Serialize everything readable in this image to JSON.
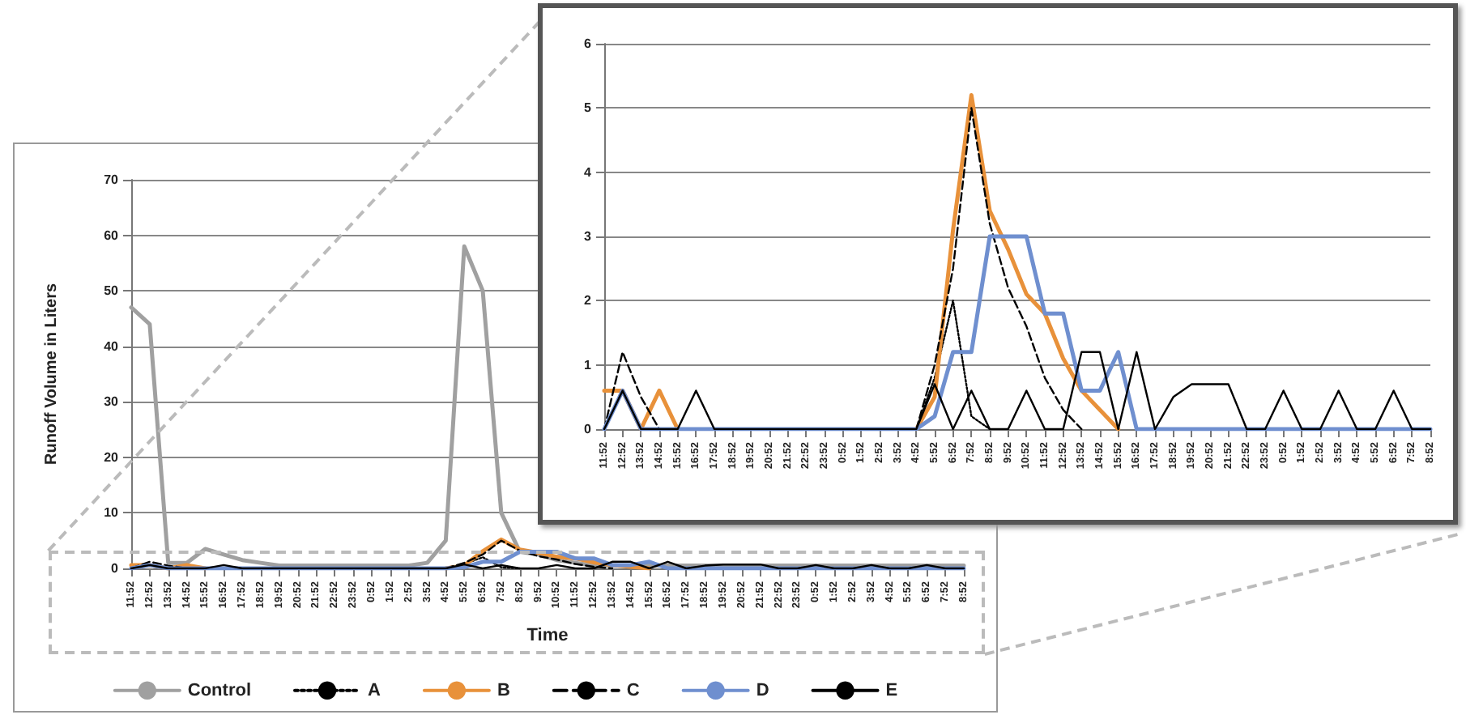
{
  "chart_data": [
    {
      "type": "line",
      "xlabel": "Time",
      "ylabel": "Runoff Volume in Liters",
      "categories": [
        "11:52",
        "12:52",
        "13:52",
        "14:52",
        "15:52",
        "16:52",
        "17:52",
        "18:52",
        "19:52",
        "20:52",
        "21:52",
        "22:52",
        "23:52",
        "0:52",
        "1:52",
        "2:52",
        "3:52",
        "4:52",
        "5:52",
        "6:52",
        "7:52",
        "8:52",
        "9:52",
        "10:52",
        "11:52",
        "12:52",
        "13:52",
        "14:52",
        "15:52",
        "16:52",
        "17:52",
        "18:52",
        "19:52",
        "20:52",
        "21:52",
        "22:52",
        "23:52",
        "0:52",
        "1:52",
        "2:52",
        "3:52",
        "4:52",
        "5:52",
        "6:52",
        "7:52",
        "8:52"
      ],
      "ylim": [
        0,
        70
      ],
      "yticks": [
        0,
        10,
        20,
        30,
        40,
        50,
        60,
        70
      ],
      "grid": "y",
      "legend": "bottom",
      "series": [
        {
          "name": "Control",
          "color": "#a0a0a0",
          "line_style": "solid",
          "values": [
            47,
            44,
            1,
            1,
            3.5,
            2.5,
            1.5,
            1,
            0.5,
            0.5,
            0.5,
            0.5,
            0.5,
            0.5,
            0.5,
            0.5,
            1,
            5,
            58,
            50,
            10,
            3,
            2.5,
            1.5,
            1,
            0.5,
            0.5,
            0.5,
            0.5,
            0.5,
            0.5,
            0.5,
            0.5,
            0.5,
            0.5,
            0.5,
            0.5,
            0.5,
            0.5,
            0.5,
            0.5,
            0.5,
            0.5,
            0.5,
            0.5,
            0.5
          ]
        },
        {
          "name": "A",
          "color": "#000000",
          "line_style": "dotted",
          "values": [
            null,
            null,
            null,
            null,
            null,
            null,
            null,
            null,
            null,
            null,
            null,
            null,
            null,
            null,
            null,
            null,
            null,
            0,
            0.8,
            2,
            0.2,
            0,
            null,
            null,
            null,
            null,
            null,
            null,
            null,
            null,
            null,
            null,
            null,
            null,
            null,
            null,
            null,
            null,
            null,
            null,
            null,
            null,
            null,
            null,
            null,
            null
          ]
        },
        {
          "name": "B",
          "color": "#e8913a",
          "line_style": "solid",
          "values": [
            0.6,
            0.6,
            0,
            0.6,
            0,
            null,
            null,
            null,
            null,
            null,
            null,
            null,
            null,
            null,
            null,
            null,
            null,
            0,
            0.5,
            3.1,
            5.2,
            3.4,
            2.8,
            2.1,
            1.8,
            1.1,
            0.6,
            0.3,
            0,
            null,
            null,
            null,
            null,
            null,
            null,
            null,
            null,
            null,
            null,
            null,
            null,
            null,
            null,
            null,
            null,
            null
          ]
        },
        {
          "name": "C",
          "color": "#000000",
          "line_style": "dashed",
          "values": [
            0,
            1.2,
            0.5,
            0,
            null,
            null,
            null,
            null,
            null,
            null,
            null,
            null,
            null,
            null,
            null,
            null,
            null,
            0,
            1,
            2.5,
            5,
            3.2,
            2.2,
            1.6,
            0.8,
            0.3,
            0,
            null,
            null,
            null,
            null,
            null,
            null,
            null,
            null,
            null,
            null,
            null,
            null,
            null,
            null,
            null,
            null,
            null,
            null,
            null
          ]
        },
        {
          "name": "D",
          "color": "#6f8fcf",
          "line_style": "solid",
          "values": [
            0,
            0.6,
            0,
            0,
            0,
            0,
            0,
            0,
            0,
            0,
            0,
            0,
            0,
            0,
            0,
            0,
            0,
            0,
            0.2,
            1.2,
            1.2,
            3,
            3,
            3,
            1.8,
            1.8,
            0.6,
            0.6,
            1.2,
            0,
            0,
            0,
            0,
            0,
            0,
            0,
            0,
            0,
            0,
            0,
            0,
            0,
            0,
            0,
            0,
            0
          ]
        },
        {
          "name": "E",
          "color": "#000000",
          "line_style": "solid",
          "values": [
            0,
            0.6,
            0,
            0,
            0,
            0.6,
            0,
            0,
            0,
            0,
            0,
            0,
            0,
            0,
            0,
            0,
            0,
            0,
            0.7,
            0,
            0.6,
            0,
            0,
            0.6,
            0,
            0,
            1.2,
            1.2,
            0,
            1.2,
            0,
            0.5,
            0.7,
            0.7,
            0.7,
            0,
            0,
            0.6,
            0,
            0,
            0.6,
            0,
            0,
            0.6,
            0,
            0
          ]
        }
      ]
    },
    {
      "type": "line",
      "categories": [
        "11:52",
        "12:52",
        "13:52",
        "14:52",
        "15:52",
        "16:52",
        "17:52",
        "18:52",
        "19:52",
        "20:52",
        "21:52",
        "22:52",
        "23:52",
        "0:52",
        "1:52",
        "2:52",
        "3:52",
        "4:52",
        "5:52",
        "6:52",
        "7:52",
        "8:52",
        "9:52",
        "10:52",
        "11:52",
        "12:52",
        "13:52",
        "14:52",
        "15:52",
        "16:52",
        "17:52",
        "18:52",
        "19:52",
        "20:52",
        "21:52",
        "22:52",
        "23:52",
        "0:52",
        "1:52",
        "2:52",
        "3:52",
        "4:52",
        "5:52",
        "6:52",
        "7:52",
        "8:52"
      ],
      "ylim": [
        0,
        6
      ],
      "yticks": [
        0,
        1,
        2,
        3,
        4,
        5,
        6
      ],
      "grid": "y",
      "series": [
        {
          "color": "#000000",
          "line_style": "dotted",
          "values": [
            null,
            null,
            null,
            null,
            null,
            null,
            null,
            null,
            null,
            null,
            null,
            null,
            null,
            null,
            null,
            null,
            null,
            0,
            0.8,
            2,
            0.2,
            0,
            null,
            null,
            null,
            null,
            null,
            null,
            null,
            null,
            null,
            null,
            null,
            null,
            null,
            null,
            null,
            null,
            null,
            null,
            null,
            null,
            null,
            null,
            null,
            null
          ]
        },
        {
          "color": "#e8913a",
          "line_style": "solid",
          "values": [
            0.6,
            0.6,
            0,
            0.6,
            0,
            null,
            null,
            null,
            null,
            null,
            null,
            null,
            null,
            null,
            null,
            null,
            null,
            0,
            0.5,
            3.1,
            5.2,
            3.4,
            2.8,
            2.1,
            1.8,
            1.1,
            0.6,
            0.3,
            0,
            null,
            null,
            null,
            null,
            null,
            null,
            null,
            null,
            null,
            null,
            null,
            null,
            null,
            null,
            null,
            null,
            null
          ]
        },
        {
          "color": "#000000",
          "line_style": "dashed",
          "values": [
            0,
            1.2,
            0.5,
            0,
            null,
            null,
            null,
            null,
            null,
            null,
            null,
            null,
            null,
            null,
            null,
            null,
            null,
            0,
            1,
            2.5,
            5,
            3.2,
            2.2,
            1.6,
            0.8,
            0.3,
            0,
            null,
            null,
            null,
            null,
            null,
            null,
            null,
            null,
            null,
            null,
            null,
            null,
            null,
            null,
            null,
            null,
            null,
            null,
            null
          ]
        },
        {
          "color": "#6f8fcf",
          "line_style": "solid",
          "values": [
            0,
            0.6,
            0,
            0,
            0,
            0,
            0,
            0,
            0,
            0,
            0,
            0,
            0,
            0,
            0,
            0,
            0,
            0,
            0.2,
            1.2,
            1.2,
            3,
            3,
            3,
            1.8,
            1.8,
            0.6,
            0.6,
            1.2,
            0,
            0,
            0,
            0,
            0,
            0,
            0,
            0,
            0,
            0,
            0,
            0,
            0,
            0,
            0,
            0,
            0
          ]
        },
        {
          "color": "#000000",
          "line_style": "solid",
          "values": [
            0,
            0.6,
            0,
            0,
            0,
            0.6,
            0,
            0,
            0,
            0,
            0,
            0,
            0,
            0,
            0,
            0,
            0,
            0,
            0.7,
            0,
            0.6,
            0,
            0,
            0.6,
            0,
            0,
            1.2,
            1.2,
            0,
            1.2,
            0,
            0.5,
            0.7,
            0.7,
            0.7,
            0,
            0,
            0.6,
            0,
            0,
            0.6,
            0,
            0,
            0.6,
            0,
            0
          ]
        }
      ]
    }
  ]
}
